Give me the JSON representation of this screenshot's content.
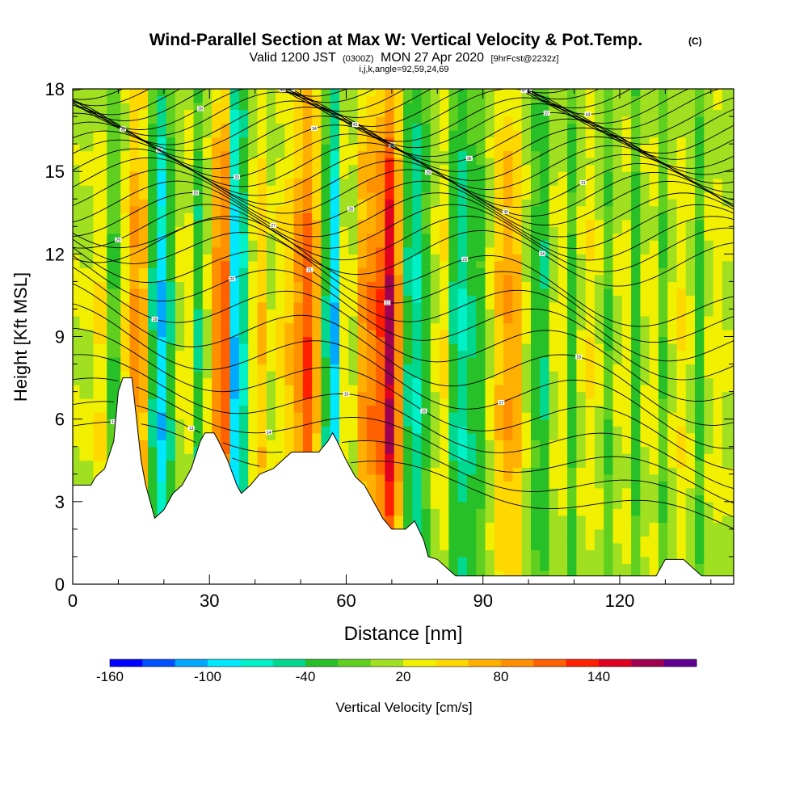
{
  "chart_data": {
    "type": "heatmap",
    "title": "Wind-Parallel Section at Max W: Vertical Velocity & Pot.Temp.",
    "title_mark": "(C)",
    "subtitle": {
      "main1": "Valid 1200 JST",
      "small1": "(0300Z)",
      "main2": "MON 27 Apr 2020",
      "small2": "[9hrFcst@2232z]"
    },
    "subtitle2": "i,j,k,angle=92,59,24,69",
    "xlabel": "Distance [nm]",
    "ylabel": "Height [Kft MSL]",
    "xlim": [
      0,
      145
    ],
    "ylim": [
      0,
      18
    ],
    "x_ticks": [
      "0",
      "30",
      "60",
      "90",
      "120"
    ],
    "y_ticks": [
      "0",
      "3",
      "6",
      "9",
      "12",
      "15",
      "18"
    ],
    "colorbar": {
      "label": "Vertical Velocity [cm/s]",
      "tick_labels": [
        "-160",
        "-100",
        "-40",
        "20",
        "80",
        "140"
      ],
      "levels": [
        -160,
        -100,
        -40,
        20,
        80,
        140
      ],
      "colors": [
        "#0000ff",
        "#0050ff",
        "#00a8ff",
        "#00e8ff",
        "#00f0c8",
        "#00d890",
        "#28c028",
        "#60d020",
        "#a0e020",
        "#f0f000",
        "#ffd800",
        "#ffb000",
        "#ff9000",
        "#ff6000",
        "#ff2000",
        "#e00020",
        "#a00050",
        "#600090"
      ]
    },
    "columns": [
      {
        "x": 0,
        "w": 20
      },
      {
        "x": 3,
        "w": 20
      },
      {
        "x": 6,
        "w": 40
      },
      {
        "x": 9,
        "w": -20
      },
      {
        "x": 12,
        "w": 40
      },
      {
        "x": 14,
        "w": 90
      },
      {
        "x": 16,
        "w": 70
      },
      {
        "x": 18,
        "w": -40
      },
      {
        "x": 20,
        "w": -100
      },
      {
        "x": 22,
        "w": -40
      },
      {
        "x": 24,
        "w": 20
      },
      {
        "x": 26,
        "w": 30
      },
      {
        "x": 28,
        "w": -40
      },
      {
        "x": 30,
        "w": 20
      },
      {
        "x": 32,
        "w": 90
      },
      {
        "x": 34,
        "w": 110
      },
      {
        "x": 36,
        "w": -100
      },
      {
        "x": 38,
        "w": -60
      },
      {
        "x": 40,
        "w": 30
      },
      {
        "x": 42,
        "w": 60
      },
      {
        "x": 44,
        "w": 20
      },
      {
        "x": 46,
        "w": 40
      },
      {
        "x": 48,
        "w": 60
      },
      {
        "x": 50,
        "w": 90
      },
      {
        "x": 52,
        "w": 120
      },
      {
        "x": 54,
        "w": 70
      },
      {
        "x": 56,
        "w": -40
      },
      {
        "x": 58,
        "w": -100
      },
      {
        "x": 60,
        "w": 30
      },
      {
        "x": 62,
        "w": 20
      },
      {
        "x": 64,
        "w": 80
      },
      {
        "x": 66,
        "w": 100
      },
      {
        "x": 68,
        "w": 120
      },
      {
        "x": 70,
        "w": 170
      },
      {
        "x": 72,
        "w": 90
      },
      {
        "x": 74,
        "w": -40
      },
      {
        "x": 76,
        "w": -60
      },
      {
        "x": 78,
        "w": -30
      },
      {
        "x": 80,
        "w": 20
      },
      {
        "x": 82,
        "w": 40
      },
      {
        "x": 84,
        "w": -40
      },
      {
        "x": 86,
        "w": -60
      },
      {
        "x": 88,
        "w": -40
      },
      {
        "x": 90,
        "w": -30
      },
      {
        "x": 92,
        "w": 20
      },
      {
        "x": 94,
        "w": 60
      },
      {
        "x": 96,
        "w": 80
      },
      {
        "x": 98,
        "w": 70
      },
      {
        "x": 100,
        "w": 20
      },
      {
        "x": 102,
        "w": -30
      },
      {
        "x": 104,
        "w": -40
      },
      {
        "x": 106,
        "w": 20
      },
      {
        "x": 108,
        "w": 30
      },
      {
        "x": 110,
        "w": -30
      },
      {
        "x": 112,
        "w": 20
      },
      {
        "x": 114,
        "w": 40
      },
      {
        "x": 116,
        "w": 20
      },
      {
        "x": 118,
        "w": -20
      },
      {
        "x": 120,
        "w": 20
      },
      {
        "x": 122,
        "w": 30
      },
      {
        "x": 124,
        "w": -30
      },
      {
        "x": 126,
        "w": 20
      },
      {
        "x": 128,
        "w": 30
      },
      {
        "x": 130,
        "w": -20
      },
      {
        "x": 132,
        "w": 20
      },
      {
        "x": 134,
        "w": 40
      },
      {
        "x": 136,
        "w": 20
      },
      {
        "x": 138,
        "w": -30
      },
      {
        "x": 140,
        "w": 20
      },
      {
        "x": 142,
        "w": 30
      },
      {
        "x": 144,
        "w": 20
      }
    ],
    "terrain": [
      {
        "x": 0,
        "h": 3.6
      },
      {
        "x": 4,
        "h": 3.6
      },
      {
        "x": 5,
        "h": 3.9
      },
      {
        "x": 7,
        "h": 4.2
      },
      {
        "x": 9,
        "h": 5.2
      },
      {
        "x": 10,
        "h": 7.0
      },
      {
        "x": 11,
        "h": 7.5
      },
      {
        "x": 13,
        "h": 7.5
      },
      {
        "x": 14,
        "h": 6.0
      },
      {
        "x": 15,
        "h": 4.5
      },
      {
        "x": 16,
        "h": 3.6
      },
      {
        "x": 17,
        "h": 3.0
      },
      {
        "x": 18,
        "h": 2.4
      },
      {
        "x": 20,
        "h": 2.7
      },
      {
        "x": 22,
        "h": 3.3
      },
      {
        "x": 24,
        "h": 3.6
      },
      {
        "x": 26,
        "h": 4.2
      },
      {
        "x": 28,
        "h": 5.2
      },
      {
        "x": 29,
        "h": 5.5
      },
      {
        "x": 31,
        "h": 5.5
      },
      {
        "x": 32,
        "h": 5.2
      },
      {
        "x": 34,
        "h": 4.5
      },
      {
        "x": 36,
        "h": 3.6
      },
      {
        "x": 37,
        "h": 3.3
      },
      {
        "x": 39,
        "h": 3.6
      },
      {
        "x": 41,
        "h": 4.0
      },
      {
        "x": 44,
        "h": 4.2
      },
      {
        "x": 46,
        "h": 4.5
      },
      {
        "x": 48,
        "h": 4.8
      },
      {
        "x": 54,
        "h": 4.8
      },
      {
        "x": 56,
        "h": 5.2
      },
      {
        "x": 57,
        "h": 5.5
      },
      {
        "x": 58,
        "h": 5.2
      },
      {
        "x": 60,
        "h": 4.5
      },
      {
        "x": 62,
        "h": 3.9
      },
      {
        "x": 64,
        "h": 3.6
      },
      {
        "x": 66,
        "h": 3.0
      },
      {
        "x": 68,
        "h": 2.4
      },
      {
        "x": 70,
        "h": 2.0
      },
      {
        "x": 73,
        "h": 2.0
      },
      {
        "x": 75,
        "h": 2.3
      },
      {
        "x": 77,
        "h": 1.6
      },
      {
        "x": 78,
        "h": 1.0
      },
      {
        "x": 80,
        "h": 0.9
      },
      {
        "x": 82,
        "h": 0.6
      },
      {
        "x": 84,
        "h": 0.3
      },
      {
        "x": 128,
        "h": 0.3
      },
      {
        "x": 129,
        "h": 0.6
      },
      {
        "x": 130,
        "h": 0.9
      },
      {
        "x": 134,
        "h": 0.9
      },
      {
        "x": 136,
        "h": 0.6
      },
      {
        "x": 138,
        "h": 0.3
      },
      {
        "x": 145,
        "h": 0.3
      }
    ],
    "theta_contours": {
      "levels": [
        12,
        13,
        14,
        15,
        16,
        17,
        18,
        19,
        20,
        21,
        22,
        23,
        24,
        25,
        26,
        27,
        28,
        29,
        30,
        31,
        32,
        33,
        34,
        35,
        36,
        37,
        38,
        39,
        40,
        41,
        42,
        43,
        44,
        45,
        46,
        47,
        48
      ],
      "base_height": [
        4.0,
        4.6,
        5.3,
        6.0,
        6.8,
        7.6,
        8.4,
        9.2,
        9.9,
        10.5,
        11.1,
        11.6,
        12.1,
        12.6,
        13.0,
        13.4,
        13.8,
        14.2,
        14.5,
        14.8,
        15.1,
        15.4,
        15.7,
        16.0,
        16.3,
        16.5,
        16.8,
        17.0,
        17.3,
        17.5,
        17.8,
        18.0,
        18.3,
        18.5,
        18.8,
        19.0,
        19.3
      ]
    }
  }
}
